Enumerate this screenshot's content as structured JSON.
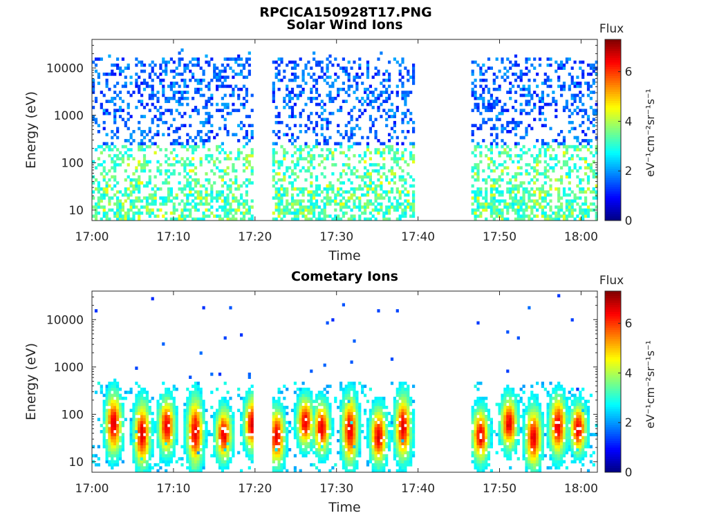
{
  "figure_title": "RPCICA150928T17.PNG",
  "colorbar_label": "eV⁻¹cm⁻²sr⁻¹s⁻¹",
  "colorbar_title": "Flux",
  "colormap": [
    "#000080",
    "#0000ff",
    "#0080ff",
    "#00ffff",
    "#80ff80",
    "#ffff00",
    "#ff8000",
    "#ff0000",
    "#800000"
  ],
  "chart_data": [
    {
      "type": "heatmap",
      "title": "Solar Wind Ions",
      "xlabel": "Time",
      "ylabel": "Energy (eV)",
      "yscale": "log",
      "ylim": [
        6,
        40000
      ],
      "xlim": [
        "17:00",
        "18:02"
      ],
      "xticks": [
        "17:00",
        "17:10",
        "17:20",
        "17:30",
        "17:40",
        "17:50",
        "18:00"
      ],
      "yticks": [
        10,
        100,
        1000,
        10000
      ],
      "ytick_labels": [
        "10",
        "100",
        "1000",
        "10000"
      ],
      "clim": [
        0,
        7.3
      ],
      "cticks": [
        0,
        2,
        4,
        6
      ],
      "data_gaps": [
        [
          "17:19.5",
          "17:22"
        ],
        [
          "17:39.5",
          "17:46.5"
        ]
      ],
      "data_coverage": [
        [
          "17:00",
          "17:19.5"
        ],
        [
          "17:22",
          "17:39.5"
        ],
        [
          "17:46.5",
          "18:02"
        ]
      ],
      "features": "Sparse blue counts (flux ~1-2) from ~10 eV up to ~20000 eV; denser cyan-green (flux ~2.5-3.5) below ~200 eV"
    },
    {
      "type": "heatmap",
      "title": "Cometary Ions",
      "xlabel": "Time",
      "ylabel": "Energy (eV)",
      "yscale": "log",
      "ylim": [
        6,
        40000
      ],
      "xlim": [
        "17:00",
        "18:02"
      ],
      "xticks": [
        "17:00",
        "17:10",
        "17:20",
        "17:30",
        "17:40",
        "17:50",
        "18:00"
      ],
      "yticks": [
        10,
        100,
        1000,
        10000
      ],
      "ytick_labels": [
        "10",
        "100",
        "1000",
        "10000"
      ],
      "clim": [
        0,
        7.3
      ],
      "cticks": [
        0,
        2,
        4,
        6
      ],
      "data_gaps": [
        [
          "17:19.5",
          "17:22"
        ],
        [
          "17:39.5",
          "17:46.5"
        ]
      ],
      "burst_times_min": [
        2.5,
        6,
        9,
        12.5,
        16,
        19.5,
        22.5,
        26,
        28,
        31.5,
        35,
        38,
        47.5,
        51,
        54,
        57,
        59.5
      ],
      "features": "Periodic vertical bursts peaking at ~30-60 eV with flux ~5-6.5, extending up to ~600 eV; sparse blue dots up to ~20000 eV"
    }
  ]
}
